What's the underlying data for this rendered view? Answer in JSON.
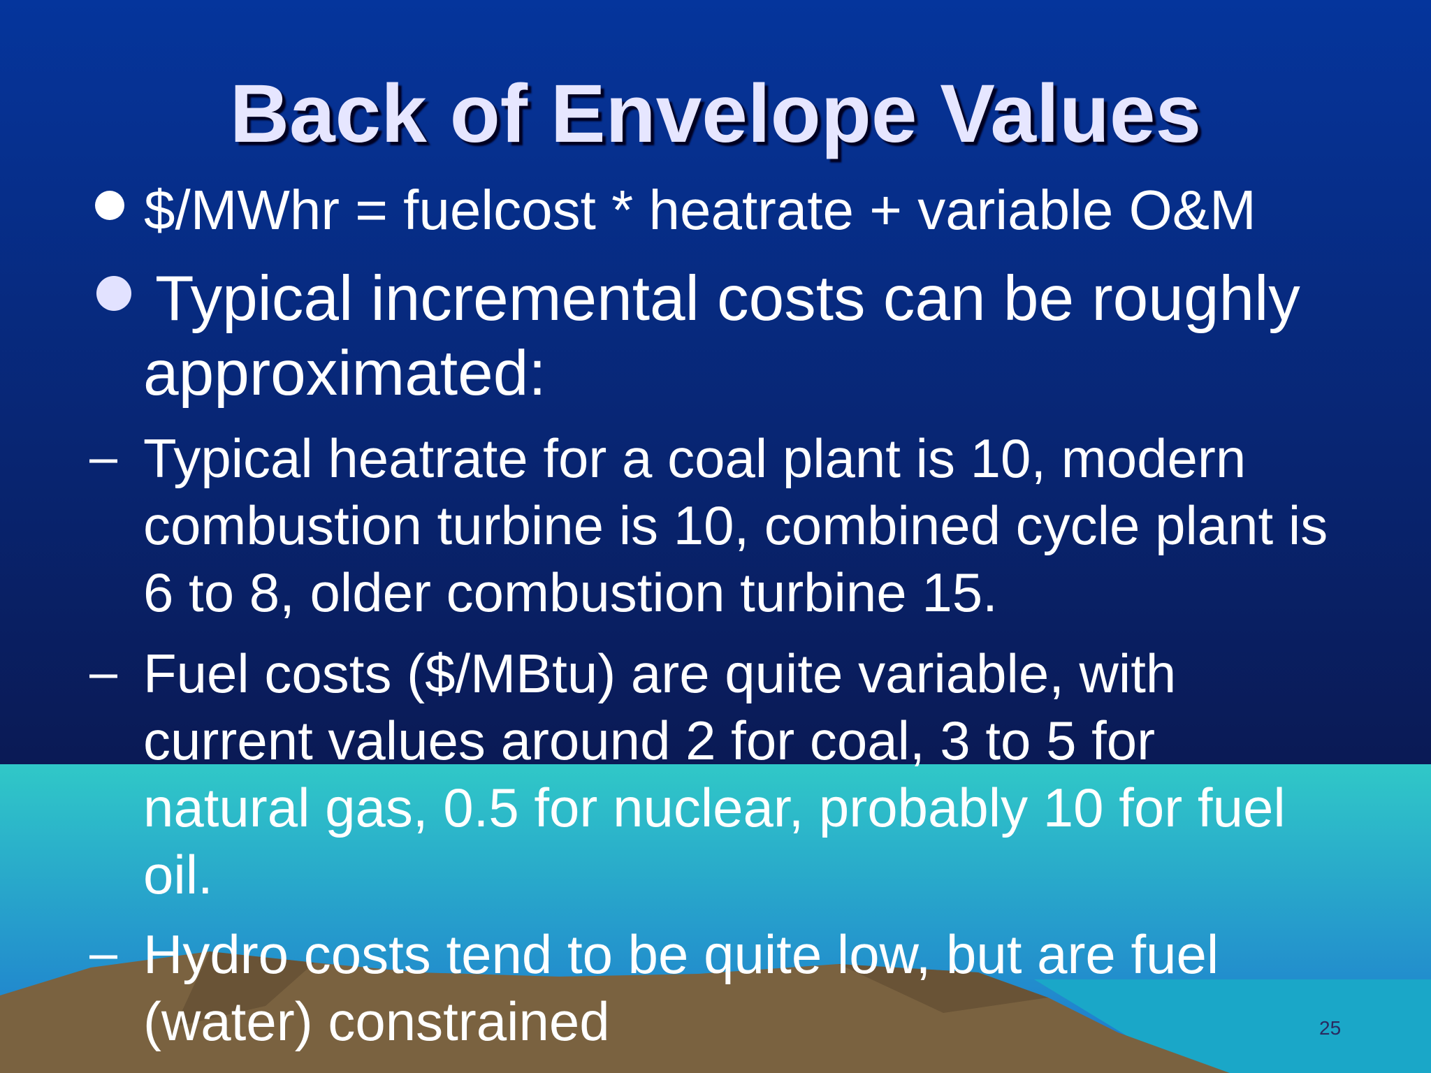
{
  "slide": {
    "title": "Back of Envelope Values",
    "bullets": [
      "$/MWhr = fuelcost * heatrate + variable O&M",
      "Typical incremental costs can be roughly approximated:"
    ],
    "sub_bullets": [
      "Typical heatrate for a coal plant is 10, modern combustion turbine is 10, combined cycle plant is 6 to 8, older combustion turbine 15.",
      "Fuel costs ($/MBtu) are quite variable, with current values around 2 for coal, 3 to 5 for natural gas, 0.5 for nuclear, probably 10 for fuel oil.",
      "Hydro costs tend to be quite low, but are fuel (water) constrained"
    ],
    "slide_number": "25"
  }
}
